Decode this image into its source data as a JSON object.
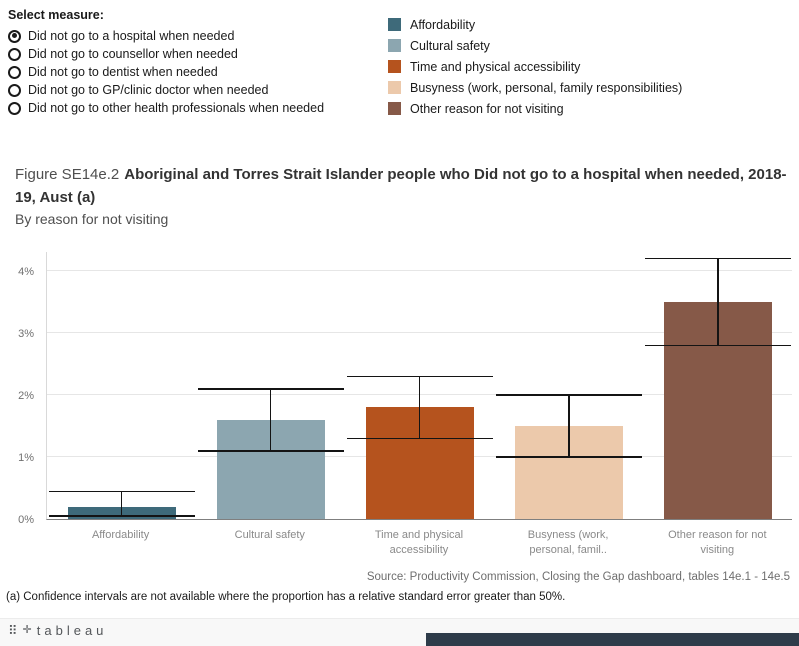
{
  "controls": {
    "label": "Select measure:",
    "options": [
      {
        "label": "Did not go to a hospital when needed",
        "selected": true
      },
      {
        "label": "Did not go to counsellor when needed",
        "selected": false
      },
      {
        "label": "Did not go to dentist when needed",
        "selected": false
      },
      {
        "label": "Did not go to GP/clinic doctor when needed",
        "selected": false
      },
      {
        "label": "Did not go to other health professionals when needed",
        "selected": false
      }
    ]
  },
  "legend": {
    "items": [
      {
        "label": "Affordability",
        "color": "#3e6a7a"
      },
      {
        "label": "Cultural safety",
        "color": "#8ca6b0"
      },
      {
        "label": "Time and physical accessibility",
        "color": "#b5531e"
      },
      {
        "label": "Busyness (work, personal, family responsibilities)",
        "color": "#ecc9ab"
      },
      {
        "label": "Other reason for not visiting",
        "color": "#865948"
      }
    ]
  },
  "title": {
    "prefix": "Figure SE14e.2",
    "main": "Aboriginal and Torres Strait Islander people who Did not go to a hospital when needed, 2018-19, Aust (a)",
    "subtitle": "By reason for not visiting"
  },
  "chart_data": {
    "type": "bar",
    "categories": [
      "Affordability",
      "Cultural safety",
      "Time and physical accessibility",
      "Busyness (work, personal, famil..",
      "Other reason for not visiting"
    ],
    "values": [
      0.2,
      1.6,
      1.8,
      1.5,
      3.5
    ],
    "ci_low": [
      0.05,
      1.1,
      1.3,
      1.0,
      2.8
    ],
    "ci_high": [
      0.45,
      2.1,
      2.3,
      2.0,
      4.2
    ],
    "colors": [
      "#3e6a7a",
      "#8ca6b0",
      "#b5531e",
      "#ecc9ab",
      "#865948"
    ],
    "title": "Aboriginal and Torres Strait Islander people who Did not go to a hospital when needed, 2018-19, Aust (a)",
    "xlabel": "",
    "ylabel": "",
    "yticks": [
      0,
      1,
      2,
      3,
      4
    ],
    "ytick_labels": [
      "0%",
      "1%",
      "2%",
      "3%",
      "4%"
    ],
    "ylim": [
      0,
      4.32
    ],
    "grid": true,
    "legend_position": "top-right"
  },
  "source": "Source: Productivity Commission, Closing the Gap dashboard, tables 14e.1 - 14e.5",
  "footnote": "(a) Confidence intervals are not available where the proportion has a relative standard error greater than 50%.",
  "footer": {
    "mark_icon": "⠿",
    "plus_icon": "✛",
    "brand": "tableau"
  }
}
